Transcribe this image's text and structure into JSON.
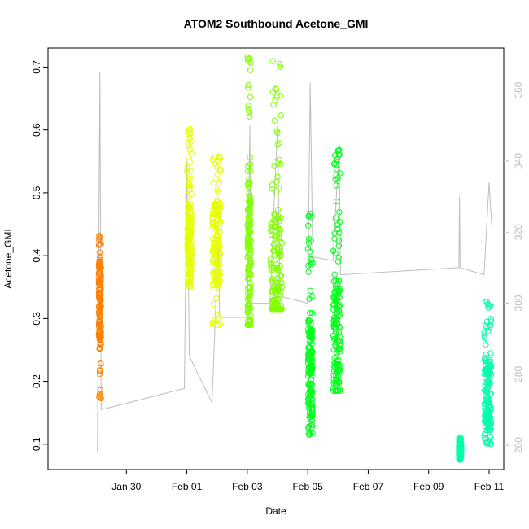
{
  "chart_data": {
    "type": "scatter",
    "title": "ATOM2 Southbound Acetone_GMI",
    "xlabel": "Date",
    "ylabel": "Acetone_GMI",
    "xlim": [
      "2017-01-28",
      "2017-02-11"
    ],
    "ylim": [
      0.07,
      0.72
    ],
    "x_ticks": [
      {
        "date": "2017-01-30",
        "label": "Jan 30"
      },
      {
        "date": "2017-02-01",
        "label": "Feb 01"
      },
      {
        "date": "2017-02-03",
        "label": "Feb 03"
      },
      {
        "date": "2017-02-05",
        "label": "Feb 05"
      },
      {
        "date": "2017-02-07",
        "label": "Feb 07"
      },
      {
        "date": "2017-02-09",
        "label": "Feb 09"
      },
      {
        "date": "2017-02-11",
        "label": "Feb 11"
      }
    ],
    "y_ticks": [
      "0.1",
      "0.2",
      "0.3",
      "0.4",
      "0.5",
      "0.6",
      "0.7"
    ],
    "y2_ticks": [
      "260",
      "280",
      "300",
      "320",
      "340",
      "360"
    ],
    "y2lim": [
      255,
      370
    ],
    "grid": false,
    "secondary_line_color": "#bebebe",
    "series": [
      {
        "color": "#ff8000",
        "x_start": "2017-01-29 02:00",
        "x_end": "2017-01-29 04:00",
        "y_min": 0.17,
        "y_max": 0.435,
        "y_center": 0.33
      },
      {
        "color": "#e6ff00",
        "x_start": "2017-02-01 00:00",
        "x_end": "2017-02-01 04:00",
        "y_min": 0.35,
        "y_max": 0.605,
        "y_center": 0.42
      },
      {
        "color": "#e6ff00",
        "x_start": "2017-02-01 20:00",
        "x_end": "2017-02-02 03:00",
        "y_min": 0.285,
        "y_max": 0.56,
        "y_center": 0.42
      },
      {
        "color": "#80ff00",
        "x_start": "2017-02-03 00:00",
        "x_end": "2017-02-03 03:00",
        "y_min": 0.29,
        "y_max": 0.72,
        "y_center": 0.38
      },
      {
        "color": "#80ff00",
        "x_start": "2017-02-03 18:00",
        "x_end": "2017-02-04 04:00",
        "y_min": 0.315,
        "y_max": 0.71,
        "y_center": 0.37
      },
      {
        "color": "#00ff1a",
        "x_start": "2017-02-05 00:00",
        "x_end": "2017-02-05 04:00",
        "y_min": 0.115,
        "y_max": 0.47,
        "y_center": 0.21
      },
      {
        "color": "#00ff1a",
        "x_start": "2017-02-05 20:00",
        "x_end": "2017-02-06 02:00",
        "y_min": 0.185,
        "y_max": 0.57,
        "y_center": 0.27
      },
      {
        "color": "#00ffaa",
        "x_start": "2017-02-10 00:00",
        "x_end": "2017-02-10 02:00",
        "y_min": 0.075,
        "y_max": 0.112,
        "y_center": 0.09
      },
      {
        "color": "#00ffaa",
        "x_start": "2017-02-10 20:00",
        "x_end": "2017-02-11 02:00",
        "y_min": 0.1,
        "y_max": 0.33,
        "y_center": 0.18
      }
    ],
    "secondary_line": [
      [
        "2017-01-29 01:00",
        258
      ],
      [
        "2017-01-29 03:00",
        365
      ],
      [
        "2017-01-29 04:00",
        270
      ],
      [
        "2017-01-31 22:00",
        276
      ],
      [
        "2017-02-01 00:00",
        340
      ],
      [
        "2017-02-01 02:00",
        285
      ],
      [
        "2017-02-01 20:00",
        272
      ],
      [
        "2017-02-02 01:00",
        318
      ],
      [
        "2017-02-02 02:00",
        296
      ],
      [
        "2017-02-03 00:00",
        296
      ],
      [
        "2017-02-03 02:00",
        350
      ],
      [
        "2017-02-03 03:00",
        300
      ],
      [
        "2017-02-03 18:00",
        300
      ],
      [
        "2017-02-04 00:00",
        350
      ],
      [
        "2017-02-04 02:00",
        302
      ],
      [
        "2017-02-05 00:00",
        300
      ],
      [
        "2017-02-05 02:00",
        362
      ],
      [
        "2017-02-05 04:00",
        313
      ],
      [
        "2017-02-05 20:00",
        312
      ],
      [
        "2017-02-06 01:00",
        345
      ],
      [
        "2017-02-06 02:00",
        308
      ],
      [
        "2017-02-10 00:00",
        310
      ],
      [
        "2017-02-10 00:30",
        330
      ],
      [
        "2017-02-10 01:00",
        310
      ],
      [
        "2017-02-10 20:00",
        308
      ],
      [
        "2017-02-11 00:00",
        334
      ],
      [
        "2017-02-11 02:00",
        322
      ]
    ]
  }
}
